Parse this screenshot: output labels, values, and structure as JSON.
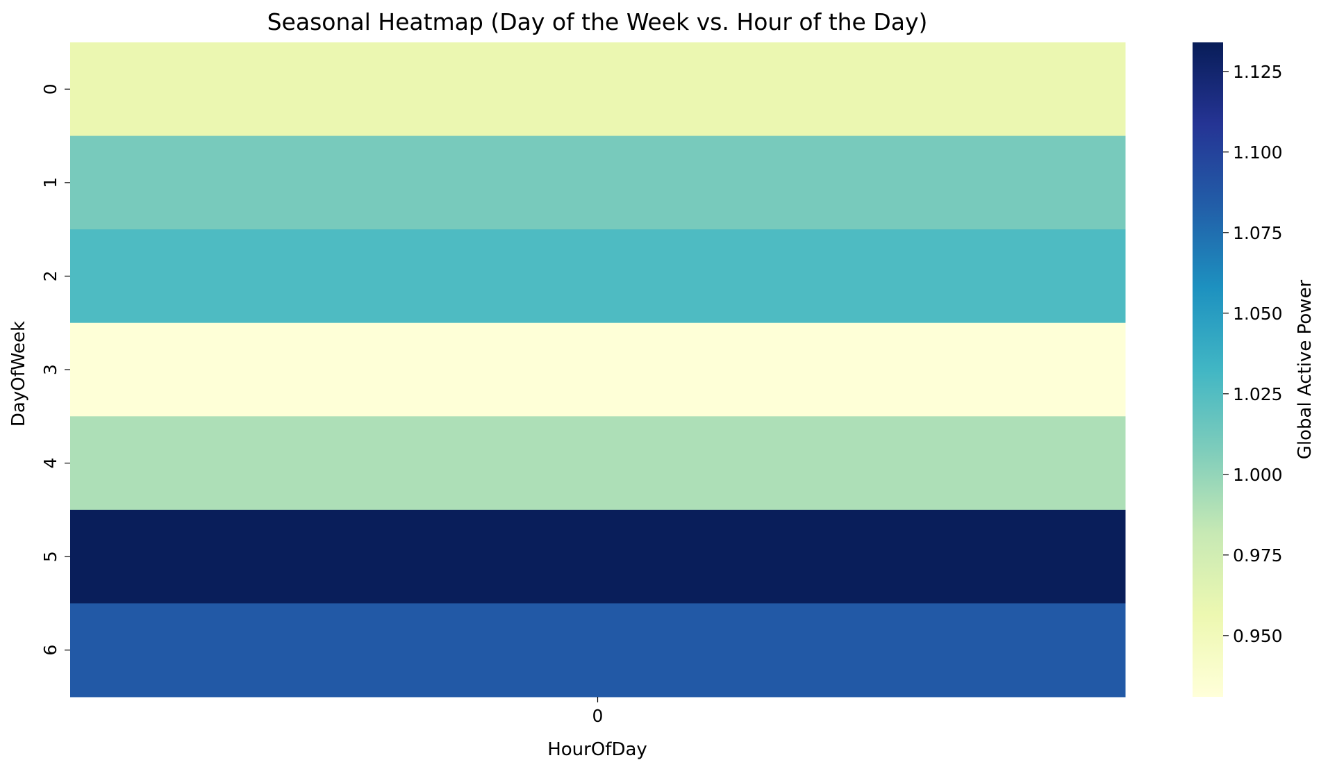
{
  "chart_data": {
    "type": "heatmap",
    "title": "Seasonal Heatmap (Day of the Week vs. Hour of the Day)",
    "xlabel": "HourOfDay",
    "ylabel": "DayOfWeek",
    "x_categories": [
      "0"
    ],
    "y_categories": [
      "0",
      "1",
      "2",
      "3",
      "4",
      "5",
      "6"
    ],
    "values": [
      [
        0.958
      ],
      [
        1.01
      ],
      [
        1.027
      ],
      [
        0.932
      ],
      [
        0.991
      ],
      [
        1.133
      ],
      [
        1.086
      ]
    ],
    "colormap": "YlGnBu",
    "colorbar": {
      "label": "Global Active Power",
      "range": [
        0.931,
        1.134
      ],
      "ticks": [
        "0.950",
        "0.975",
        "1.000",
        "1.025",
        "1.050",
        "1.075",
        "1.100",
        "1.125"
      ]
    },
    "grid": false,
    "colors": {
      "cmap_stops": [
        "#ffffd9",
        "#edf8b1",
        "#c7e9b4",
        "#7fcdbb",
        "#41b6c4",
        "#1d91c0",
        "#225ea8",
        "#253494",
        "#081d58"
      ]
    }
  }
}
